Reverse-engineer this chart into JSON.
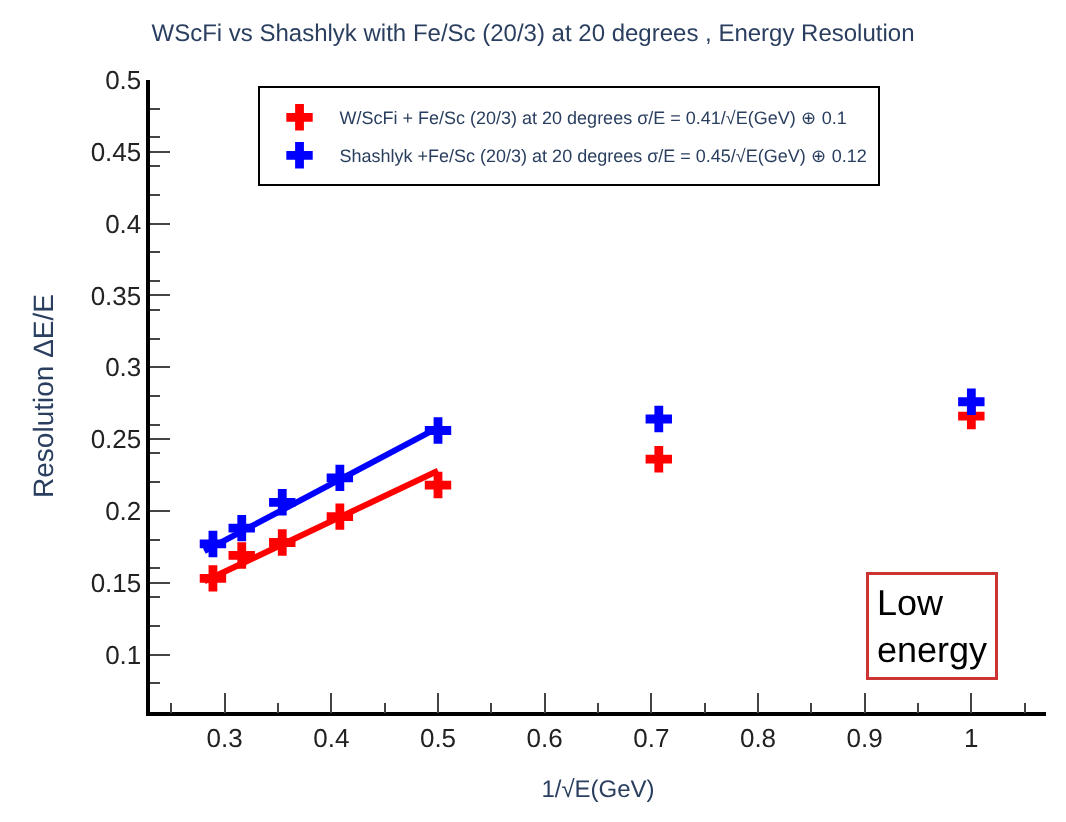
{
  "chart_data": {
    "type": "scatter",
    "title": "WScFi vs Shashlyk with Fe/Sc (20/3) at 20 degrees , Energy Resolution",
    "xlabel": "1/√E(GeV)",
    "ylabel": "Resolution ΔE/E",
    "series": [
      {
        "name": "W/ScFi + Fe/Sc (20/3) at 20 degrees σ/E = 0.41/√E(GeV) ⊕ 0.1",
        "color": "#ff0000",
        "x": [
          0.289,
          0.316,
          0.354,
          0.408,
          0.5,
          0.707,
          1.0
        ],
        "values": [
          0.153,
          0.169,
          0.178,
          0.196,
          0.218,
          0.236,
          0.266
        ],
        "marker": "cross"
      },
      {
        "name": "Shashlyk +Fe/Sc (20/3) at 20 degrees σ/E = 0.45/√E(GeV) ⊕ 0.12",
        "color": "#0000ff",
        "x": [
          0.289,
          0.316,
          0.354,
          0.408,
          0.5,
          0.707,
          1.0
        ],
        "values": [
          0.177,
          0.188,
          0.206,
          0.223,
          0.256,
          0.264,
          0.276
        ],
        "marker": "cross"
      },
      {
        "type": "line",
        "color": "#ff0000",
        "x": [
          0.281,
          0.5
        ],
        "values": [
          0.151,
          0.228
        ]
      },
      {
        "type": "line",
        "color": "#0000ff",
        "x": [
          0.281,
          0.5
        ],
        "values": [
          0.172,
          0.258
        ]
      }
    ],
    "xlim": [
      0.23,
      1.07
    ],
    "xticks": [
      0.3,
      0.4,
      0.5,
      0.6,
      0.7,
      0.8,
      0.9,
      1
    ],
    "ylim": [
      0.06,
      0.5
    ],
    "yticks": [
      0.1,
      0.15,
      0.2,
      0.25,
      0.3,
      0.35,
      0.4,
      0.45,
      0.5
    ],
    "annotations": [
      "Low energy"
    ],
    "legend": "top"
  }
}
